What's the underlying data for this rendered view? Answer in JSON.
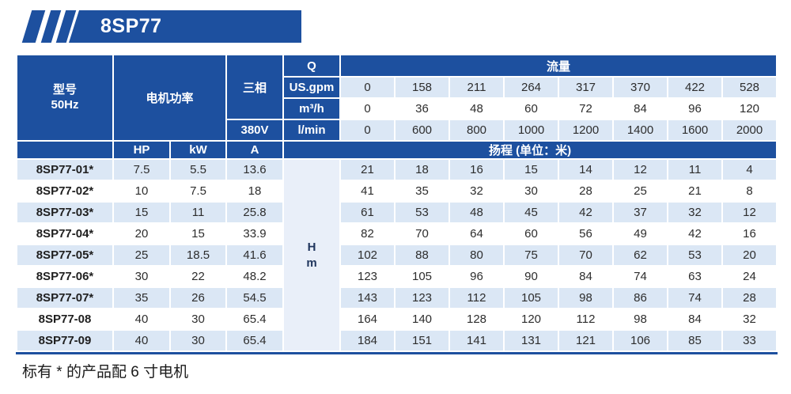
{
  "banner": {
    "title": "8SP77"
  },
  "table": {
    "header": {
      "model_line1": "型号",
      "model_line2": "50Hz",
      "motor_power_label": "电机功率",
      "three_phase_label": "三相",
      "voltage_label": "380V",
      "q_label": "Q",
      "flow_label": "流量",
      "hp_label": "HP",
      "kw_label": "kW",
      "amp_label": "A",
      "head_label": "扬程 (单位：米)",
      "head_unit_line1": "H",
      "head_unit_line2": "m"
    },
    "flow_rows": [
      {
        "unit": "US.gpm",
        "values": [
          0,
          158,
          211,
          264,
          317,
          370,
          422,
          528
        ]
      },
      {
        "unit": "m³/h",
        "values": [
          0,
          36,
          48,
          60,
          72,
          84,
          96,
          120
        ]
      },
      {
        "unit": "l/min",
        "values": [
          0,
          600,
          800,
          1000,
          1200,
          1400,
          1600,
          2000
        ]
      }
    ],
    "rows": [
      {
        "model": "8SP77-01*",
        "hp": "7.5",
        "kw": "5.5",
        "a": "13.6",
        "head": [
          21,
          18,
          16,
          15,
          14,
          12,
          11,
          4
        ]
      },
      {
        "model": "8SP77-02*",
        "hp": "10",
        "kw": "7.5",
        "a": "18",
        "head": [
          41,
          35,
          32,
          30,
          28,
          25,
          21,
          8
        ]
      },
      {
        "model": "8SP77-03*",
        "hp": "15",
        "kw": "11",
        "a": "25.8",
        "head": [
          61,
          53,
          48,
          45,
          42,
          37,
          32,
          12
        ]
      },
      {
        "model": "8SP77-04*",
        "hp": "20",
        "kw": "15",
        "a": "33.9",
        "head": [
          82,
          70,
          64,
          60,
          56,
          49,
          42,
          16
        ]
      },
      {
        "model": "8SP77-05*",
        "hp": "25",
        "kw": "18.5",
        "a": "41.6",
        "head": [
          102,
          88,
          80,
          75,
          70,
          62,
          53,
          20
        ]
      },
      {
        "model": "8SP77-06*",
        "hp": "30",
        "kw": "22",
        "a": "48.2",
        "head": [
          123,
          105,
          96,
          90,
          84,
          74,
          63,
          24
        ]
      },
      {
        "model": "8SP77-07*",
        "hp": "35",
        "kw": "26",
        "a": "54.5",
        "head": [
          143,
          123,
          112,
          105,
          98,
          86,
          74,
          28
        ]
      },
      {
        "model": "8SP77-08",
        "hp": "40",
        "kw": "30",
        "a": "65.4",
        "head": [
          164,
          140,
          128,
          120,
          112,
          98,
          84,
          32
        ]
      },
      {
        "model": "8SP77-09",
        "hp": "40",
        "kw": "30",
        "a": "65.4",
        "head": [
          184,
          151,
          141,
          131,
          121,
          106,
          85,
          33
        ]
      }
    ]
  },
  "footer": {
    "note": "标有 * 的产品配 6 寸电机"
  },
  "colors": {
    "primary_blue": "#1d509f",
    "row_alt_blue": "#dbe7f5",
    "head_unit_col_bg": "#e9eff9"
  }
}
